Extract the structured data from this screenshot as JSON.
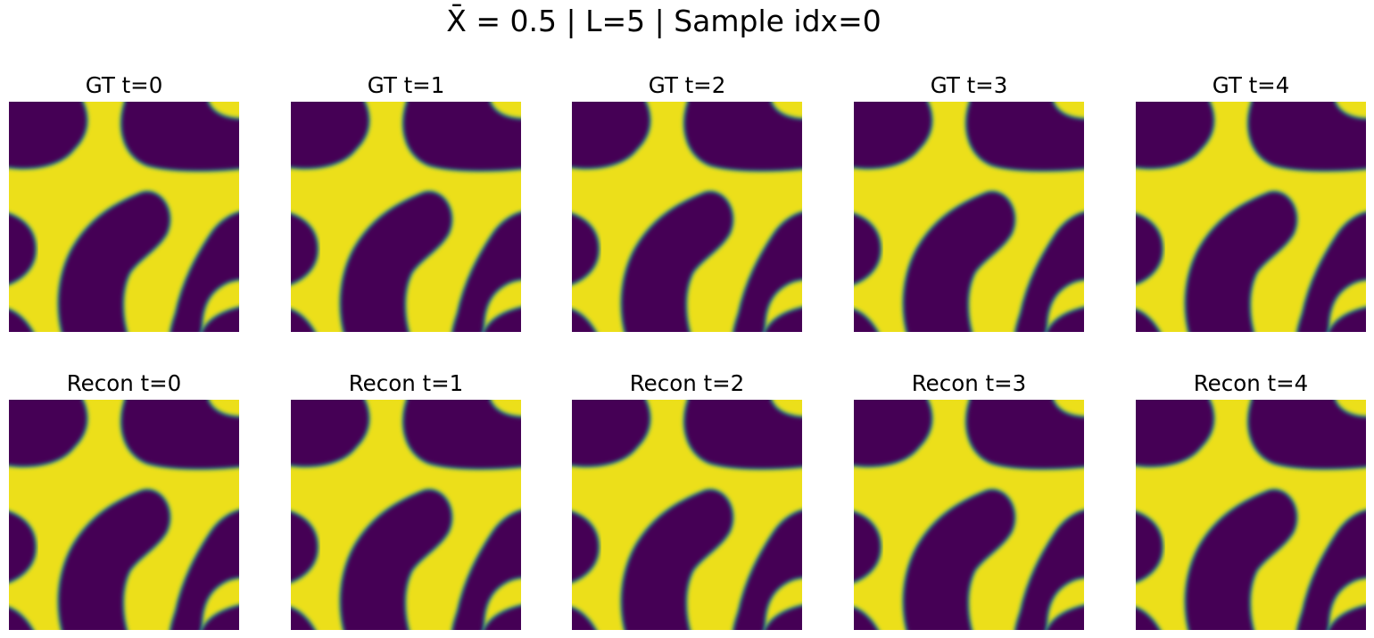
{
  "figure": {
    "suptitle": "X̄ = 0.5 | L=5 | Sample idx=0"
  },
  "chart_data": {
    "type": "heatmap",
    "title": "X̄ = 0.5 | L=5 | Sample idx=0",
    "colormap": "viridis",
    "colors": {
      "low": "#440154",
      "mid": "#21918c",
      "high": "#ecdf1a"
    },
    "axes_visible": false,
    "grid": false,
    "rows": [
      {
        "label": "GT",
        "panels": [
          {
            "title": "GT t=0"
          },
          {
            "title": "GT t=1"
          },
          {
            "title": "GT t=2"
          },
          {
            "title": "GT t=3"
          },
          {
            "title": "GT t=4"
          }
        ]
      },
      {
        "label": "Recon",
        "panels": [
          {
            "title": "Recon t=0"
          },
          {
            "title": "Recon t=1"
          },
          {
            "title": "Recon t=2"
          },
          {
            "title": "Recon t=3"
          },
          {
            "title": "Recon t=4"
          }
        ]
      }
    ],
    "pattern": "two-phase spinodal field: dark phase blobs (top-left, top-right, left-middle, central elongated blob, right-middle, bottom-left, bottom-right) on bright background; nearly identical across t=0..4 and between GT and Recon"
  }
}
